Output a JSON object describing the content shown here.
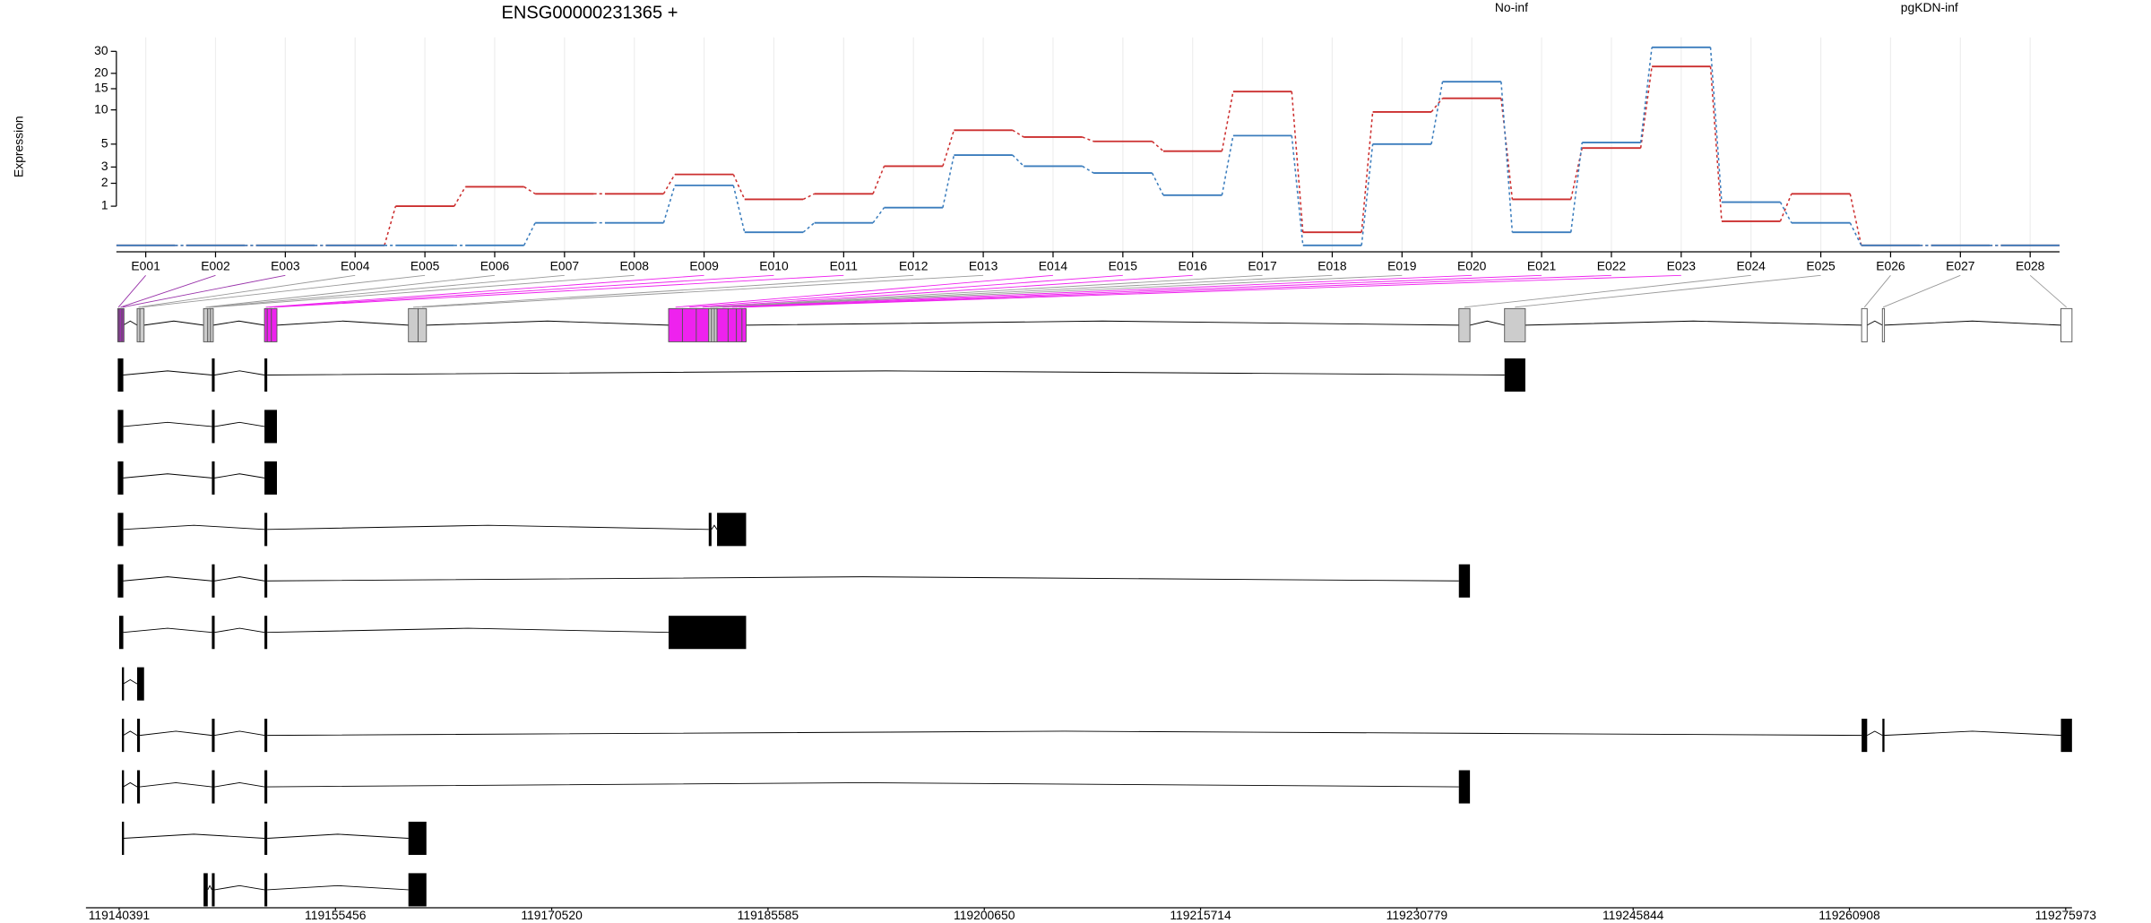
{
  "chart_data": [
    {
      "type": "line",
      "title": "ENSG00000231365 +",
      "y_label": "Expression",
      "categories": [
        "E001",
        "E002",
        "E003",
        "E004",
        "E005",
        "E006",
        "E007",
        "E008",
        "E009",
        "E010",
        "E011",
        "E012",
        "E013",
        "E014",
        "E015",
        "E016",
        "E017",
        "E018",
        "E019",
        "E020",
        "E021",
        "E022",
        "E023",
        "E024",
        "E025",
        "E026",
        "E027",
        "E028"
      ],
      "series": [
        {
          "name": "No-inf",
          "color": "#cc2f2f",
          "values": [
            0,
            0,
            0,
            0,
            1,
            1.82,
            1.49,
            1.49,
            2.51,
            1.26,
            1.49,
            3.06,
            6.68,
            5.8,
            5.3,
            4.3,
            14.2,
            0.26,
            9.6,
            12.5,
            1.26,
            4.6,
            22.7,
            0.53,
            1.49,
            0,
            0,
            0
          ]
        },
        {
          "name": "pgKDN-inf",
          "color": "#3b7dbd",
          "values": [
            0,
            0,
            0,
            0,
            0,
            0,
            0.49,
            0.49,
            1.89,
            0.26,
            0.49,
            0.95,
            3.94,
            3.06,
            2.6,
            1.43,
            5.97,
            0,
            5,
            17.1,
            0.26,
            5.17,
            32.3,
            1.15,
            0.49,
            0,
            0,
            0
          ]
        }
      ],
      "yscale": "log1p",
      "ylim": [
        0,
        35
      ],
      "yticks": [
        1,
        2,
        3,
        5,
        10,
        15,
        20,
        30
      ],
      "grid": true,
      "legend": "top"
    },
    {
      "type": "gene-model",
      "exon_bins": [
        [
          119140295,
          119140391
        ],
        [
          119140391,
          119140584
        ],
        [
          119140584,
          119140680
        ],
        [
          119141644,
          119141837
        ],
        [
          119141837,
          119142126
        ],
        [
          119146271,
          119146561
        ],
        [
          119146561,
          119146753
        ],
        [
          119146753,
          119146946
        ],
        [
          119150513,
          119150706
        ],
        [
          119150706,
          119150995
        ],
        [
          119150995,
          119151381
        ],
        [
          119160539,
          119161213
        ],
        [
          119161213,
          119161792
        ],
        [
          119178662,
          119179626
        ],
        [
          119179626,
          119180590
        ],
        [
          119180590,
          119181457
        ],
        [
          119181457,
          119181650
        ],
        [
          119181650,
          119181843
        ],
        [
          119181843,
          119182036
        ],
        [
          119182036,
          119182807
        ],
        [
          119182807,
          119183385
        ],
        [
          119183385,
          119183771
        ],
        [
          119183771,
          119184060
        ],
        [
          119233706,
          119234477
        ],
        [
          119236887,
          119238333
        ],
        [
          119261759,
          119262144
        ],
        [
          119263205,
          119263301
        ],
        [
          119275640,
          119276411
        ]
      ],
      "bin_colors": [
        "#9933aa",
        "#9933aa",
        "#9933aa",
        "#cccccc",
        "#cccccc",
        "#cccccc",
        "#cccccc",
        "#cccccc",
        "#ee22ee",
        "#ee22ee",
        "#ee22ee",
        "#cccccc",
        "#cccccc",
        "#ee22ee",
        "#ee22ee",
        "#ee22ee",
        "#cccccc",
        "#cccccc",
        "#cccccc",
        "#ee22ee",
        "#ee22ee",
        "#ee22ee",
        "#ee22ee",
        "#cccccc",
        "#cccccc",
        "#ffffff",
        "#ffffff",
        "#ffffff"
      ],
      "transcripts": [
        [
          [
            119140295,
            119140680
          ],
          [
            119146850,
            119147043
          ],
          [
            119150513,
            119150706
          ],
          [
            119236887,
            119238333
          ]
        ],
        [
          [
            119140295,
            119140680
          ],
          [
            119146850,
            119147043
          ],
          [
            119150513,
            119151381
          ]
        ],
        [
          [
            119140295,
            119140680
          ],
          [
            119146850,
            119147043
          ],
          [
            119150513,
            119151381
          ]
        ],
        [
          [
            119140295,
            119140680
          ],
          [
            119150513,
            119150706
          ],
          [
            119181457,
            119181650
          ],
          [
            119182036,
            119184060
          ]
        ],
        [
          [
            119140295,
            119140680
          ],
          [
            119146850,
            119147043
          ],
          [
            119150513,
            119150706
          ],
          [
            119233706,
            119234477
          ]
        ],
        [
          [
            119140391,
            119140680
          ],
          [
            119146850,
            119147043
          ],
          [
            119150513,
            119150706
          ],
          [
            119178662,
            119184060
          ]
        ],
        [
          [
            119140584,
            119140680
          ],
          [
            119141644,
            119142126
          ]
        ],
        [
          [
            119140584,
            119140680
          ],
          [
            119141644,
            119141837
          ],
          [
            119146850,
            119147043
          ],
          [
            119150513,
            119150706
          ],
          [
            119261759,
            119262144
          ],
          [
            119263205,
            119263301
          ],
          [
            119275640,
            119276411
          ]
        ],
        [
          [
            119140584,
            119140680
          ],
          [
            119141644,
            119141837
          ],
          [
            119146850,
            119147043
          ],
          [
            119150513,
            119150706
          ],
          [
            119233706,
            119234477
          ]
        ],
        [
          [
            119140584,
            119140680
          ],
          [
            119150513,
            119150706
          ],
          [
            119160539,
            119161792
          ]
        ],
        [
          [
            119146271,
            119146561
          ],
          [
            119146850,
            119147043
          ],
          [
            119150513,
            119150706
          ],
          [
            119160539,
            119161792
          ]
        ]
      ],
      "xlim": [
        119138077,
        119276411
      ],
      "xticks": [
        119140391,
        119155456,
        119170520,
        119185585,
        119200650,
        119215714,
        119230779,
        119245844,
        119260908,
        119275973
      ]
    }
  ]
}
